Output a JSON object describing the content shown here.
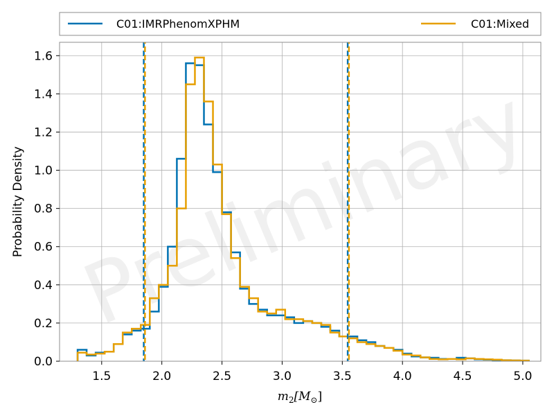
{
  "chart_data": {
    "type": "line",
    "xlabel_base": "m",
    "xlabel_sub": "2",
    "xlabel_unit": "[M",
    "xlabel_unit_sub": "⊙",
    "xlabel_close": "]",
    "ylabel": "Probability Density",
    "xlim": [
      1.15,
      5.15
    ],
    "ylim": [
      0,
      1.67
    ],
    "xticks": [
      1.5,
      2.0,
      2.5,
      3.0,
      3.5,
      4.0,
      4.5,
      5.0
    ],
    "xtick_labels": [
      "1.5",
      "2.0",
      "2.5",
      "3.0",
      "3.5",
      "4.0",
      "4.5",
      "5.0"
    ],
    "yticks": [
      0.0,
      0.2,
      0.4,
      0.6,
      0.8,
      1.0,
      1.2,
      1.4,
      1.6
    ],
    "ytick_labels": [
      "0.0",
      "0.2",
      "0.4",
      "0.6",
      "0.8",
      "1.0",
      "1.2",
      "1.4",
      "1.6"
    ],
    "grid": true,
    "legend_position": "top-outside",
    "watermark": "Preliminary",
    "series": [
      {
        "name": "C01:IMRPhenomXPHM",
        "color": "#0072b2",
        "style": "step",
        "edges": [
          1.3,
          1.375,
          1.45,
          1.525,
          1.6,
          1.675,
          1.75,
          1.825,
          1.9,
          1.975,
          2.05,
          2.125,
          2.2,
          2.275,
          2.35,
          2.425,
          2.5,
          2.575,
          2.65,
          2.725,
          2.8,
          2.875,
          2.95,
          3.025,
          3.1,
          3.175,
          3.25,
          3.325,
          3.4,
          3.475,
          3.55,
          3.625,
          3.7,
          3.775,
          3.85,
          3.925,
          4.0,
          4.075,
          4.15,
          4.225,
          4.3,
          4.375,
          4.45,
          4.525,
          4.6,
          4.675,
          4.75,
          4.825,
          4.9,
          4.975,
          5.05
        ],
        "values": [
          0.06,
          0.03,
          0.045,
          0.05,
          0.09,
          0.14,
          0.16,
          0.17,
          0.26,
          0.39,
          0.6,
          1.06,
          1.56,
          1.55,
          1.24,
          0.99,
          0.78,
          0.57,
          0.38,
          0.3,
          0.27,
          0.24,
          0.24,
          0.23,
          0.2,
          0.21,
          0.2,
          0.18,
          0.16,
          0.13,
          0.13,
          0.11,
          0.1,
          0.08,
          0.07,
          0.06,
          0.04,
          0.025,
          0.02,
          0.018,
          0.012,
          0.012,
          0.018,
          0.015,
          0.01,
          0.008,
          0.006,
          0.005,
          0.004,
          0.003
        ]
      },
      {
        "name": "C01:Mixed",
        "color": "#e69f00",
        "style": "step",
        "edges": [
          1.3,
          1.375,
          1.45,
          1.525,
          1.6,
          1.675,
          1.75,
          1.825,
          1.9,
          1.975,
          2.05,
          2.125,
          2.2,
          2.275,
          2.35,
          2.425,
          2.5,
          2.575,
          2.65,
          2.725,
          2.8,
          2.875,
          2.95,
          3.025,
          3.1,
          3.175,
          3.25,
          3.325,
          3.4,
          3.475,
          3.55,
          3.625,
          3.7,
          3.775,
          3.85,
          3.925,
          4.0,
          4.075,
          4.15,
          4.225,
          4.3,
          4.375,
          4.45,
          4.525,
          4.6,
          4.675,
          4.75,
          4.825,
          4.9,
          4.975,
          5.05
        ],
        "values": [
          0.045,
          0.035,
          0.04,
          0.05,
          0.09,
          0.15,
          0.17,
          0.19,
          0.33,
          0.4,
          0.5,
          0.8,
          1.45,
          1.59,
          1.36,
          1.03,
          0.77,
          0.54,
          0.39,
          0.33,
          0.26,
          0.25,
          0.27,
          0.22,
          0.22,
          0.21,
          0.2,
          0.19,
          0.15,
          0.13,
          0.12,
          0.1,
          0.09,
          0.08,
          0.07,
          0.055,
          0.035,
          0.03,
          0.02,
          0.012,
          0.01,
          0.012,
          0.01,
          0.015,
          0.012,
          0.01,
          0.008,
          0.005,
          0.004,
          0.003
        ]
      }
    ],
    "vlines": [
      {
        "x": 1.85,
        "color": "#0072b2",
        "style": "dashed"
      },
      {
        "x": 1.86,
        "color": "#e69f00",
        "style": "dashed"
      },
      {
        "x": 3.545,
        "color": "#0072b2",
        "style": "dashed"
      },
      {
        "x": 3.555,
        "color": "#e69f00",
        "style": "dashed"
      }
    ]
  }
}
